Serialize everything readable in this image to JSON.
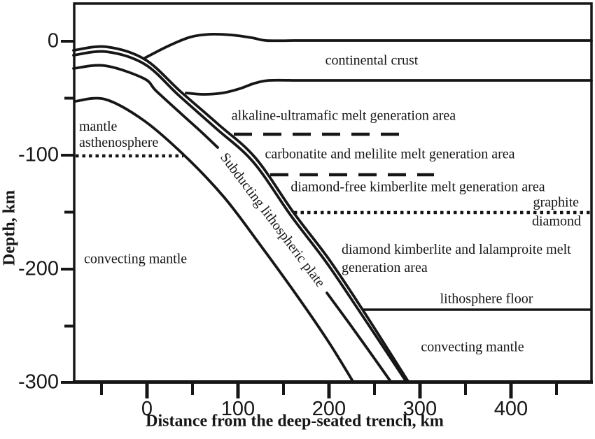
{
  "figure": {
    "type": "subduction zone cross-section diagram"
  },
  "axes": {
    "y_title": "Depth, km",
    "x_title": "Distance from the deep-seated trench, km",
    "y_ticks": [
      "0",
      "-100",
      "-200",
      "-300"
    ],
    "x_ticks": [
      "0",
      "100",
      "200",
      "300",
      "400"
    ]
  },
  "regions": {
    "continental_crust": "continental crust",
    "mantle_asthenosphere": "mantle\nasthenosphere",
    "convecting_mantle_left": "convecting mantle",
    "alkaline_area": "alkaline-ultramafic melt generation area",
    "carbonatite_area": "carbonatite and melilite melt generation area",
    "diamond_free_area": "diamond-free kimberlite melt generation area",
    "graphite": "graphite",
    "diamond": "diamond",
    "diamond_kimberlite_area": "diamond kimberlite and lalamproite melt\ngeneration area",
    "lithosphere_floor": "lithosphere floor",
    "convecting_mantle_right": "convecting mantle",
    "subducting_plate": "Subducting lithospheric plate"
  },
  "colors": {
    "ink": "#161616",
    "background": "#ffffff"
  }
}
